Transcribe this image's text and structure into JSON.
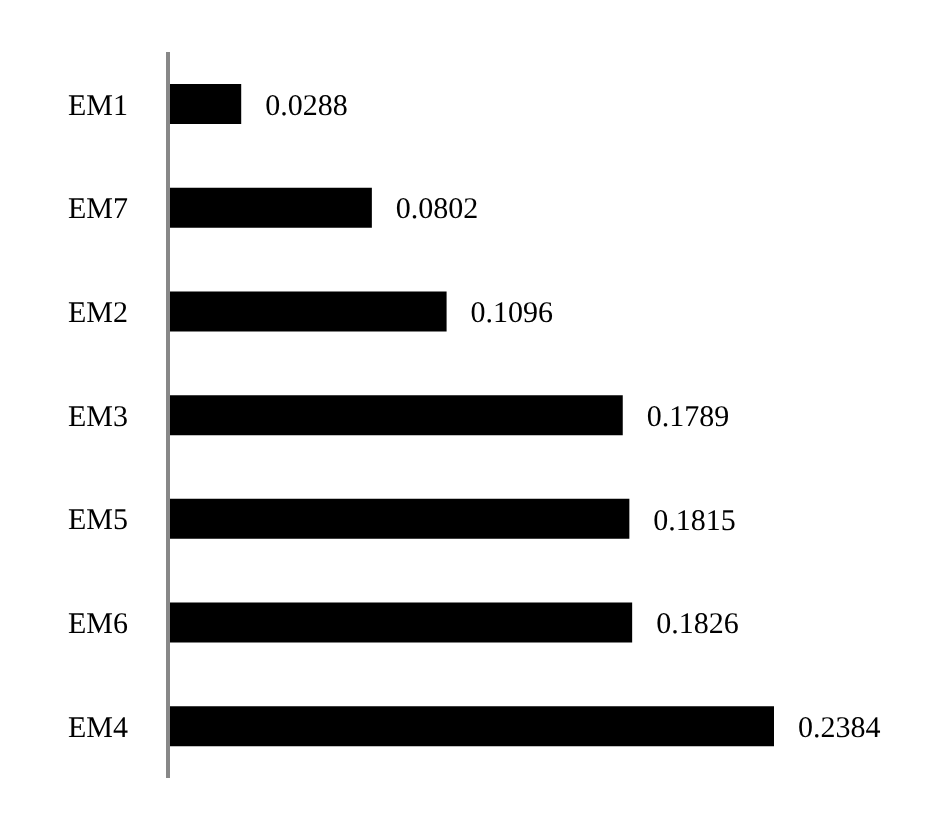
{
  "chart_data": {
    "type": "bar",
    "orientation": "horizontal",
    "categories": [
      "EM1",
      "EM7",
      "EM2",
      "EM3",
      "EM5",
      "EM6",
      "EM4"
    ],
    "values": [
      0.0288,
      0.0802,
      0.1096,
      0.1789,
      0.1815,
      0.1826,
      0.2384
    ],
    "color": "#000000",
    "data_labels": true
  }
}
